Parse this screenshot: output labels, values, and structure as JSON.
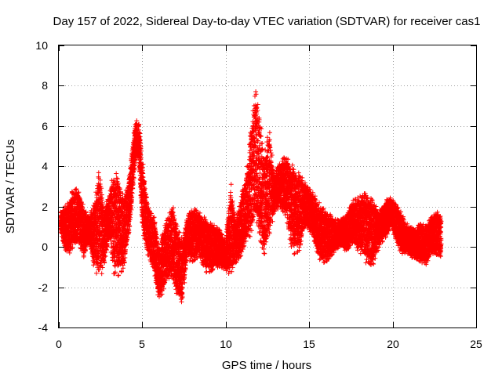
{
  "chart_data": {
    "type": "scatter",
    "title": "Day 157 of 2022, Sidereal Day-to-day VTEC variation (SDTVAR) for receiver cas1",
    "xlabel": "GPS time / hours",
    "ylabel": "SDTVAR / TECUs",
    "xlim": [
      0,
      25
    ],
    "ylim": [
      -4,
      10
    ],
    "x_ticks": [
      0,
      5,
      10,
      15,
      20,
      25
    ],
    "y_ticks": [
      -4,
      -2,
      0,
      2,
      4,
      6,
      8,
      10
    ],
    "x_tick_labels": [
      "0",
      "5",
      "10",
      "15",
      "20",
      "25"
    ],
    "y_tick_labels": [
      "-4",
      "-2",
      "0",
      "2",
      "4",
      "6",
      "8",
      "10"
    ],
    "grid": true,
    "marker": "+",
    "series": [
      {
        "name": "SDTVAR cas1",
        "color": "#ff0000",
        "envelope": {
          "x": [
            0.1,
            0.3,
            0.6,
            0.9,
            1.2,
            1.5,
            1.8,
            2.1,
            2.4,
            2.7,
            3.0,
            3.3,
            3.6,
            3.9,
            4.2,
            4.6,
            4.8,
            5.0,
            5.3,
            5.7,
            6.0,
            6.4,
            6.8,
            7.1,
            7.4,
            7.7,
            8.0,
            8.4,
            8.8,
            9.2,
            9.6,
            10.0,
            10.3,
            10.6,
            10.9,
            11.2,
            11.5,
            11.8,
            12.0,
            12.3,
            12.6,
            12.9,
            13.2,
            13.6,
            14.0,
            14.4,
            14.8,
            15.2,
            15.6,
            16.0,
            16.4,
            16.8,
            17.2,
            17.6,
            18.0,
            18.4,
            18.8,
            19.2,
            19.6,
            19.9,
            20.2,
            20.5,
            20.8,
            21.1,
            21.4,
            21.7,
            22.0,
            22.3,
            22.6,
            22.9
          ],
          "low": [
            0.8,
            0.0,
            -0.5,
            0.0,
            0.2,
            -0.6,
            0.3,
            -1.0,
            -1.8,
            -1.0,
            0.5,
            -1.5,
            -1.5,
            -1.0,
            0.5,
            4.3,
            4.4,
            0.8,
            -0.3,
            -1.2,
            -2.7,
            -2.0,
            -1.5,
            -2.5,
            -2.8,
            -0.6,
            -0.8,
            -0.5,
            -1.3,
            -1.2,
            -1.0,
            -1.2,
            -1.5,
            -0.8,
            -0.5,
            0.2,
            0.5,
            1.0,
            0.5,
            -0.5,
            0.5,
            1.5,
            2.0,
            1.5,
            -0.5,
            -0.2,
            1.0,
            0.5,
            -0.7,
            -0.8,
            -0.4,
            0.0,
            -0.3,
            0.2,
            -0.3,
            -0.8,
            -1.0,
            0.0,
            0.5,
            1.0,
            0.3,
            -0.4,
            -0.3,
            -0.5,
            -0.6,
            -0.8,
            -0.9,
            -0.5,
            -0.4,
            -0.5
          ],
          "high": [
            1.8,
            2.0,
            2.3,
            3.0,
            2.8,
            2.0,
            1.5,
            2.2,
            3.9,
            2.0,
            2.5,
            4.0,
            3.6,
            2.5,
            3.5,
            6.4,
            6.2,
            4.5,
            2.2,
            1.5,
            0.0,
            1.2,
            2.2,
            1.0,
            0.5,
            1.5,
            2.0,
            1.8,
            1.5,
            1.2,
            1.0,
            0.3,
            3.3,
            1.2,
            2.5,
            3.5,
            5.8,
            8.0,
            7.0,
            4.5,
            6.1,
            3.5,
            4.2,
            4.6,
            4.2,
            3.8,
            3.2,
            2.8,
            2.2,
            1.8,
            1.5,
            1.3,
            1.6,
            2.3,
            2.6,
            2.7,
            2.4,
            1.8,
            2.4,
            2.5,
            2.2,
            1.8,
            1.2,
            1.0,
            0.9,
            1.3,
            1.0,
            1.5,
            1.8,
            1.6
          ]
        }
      }
    ]
  }
}
